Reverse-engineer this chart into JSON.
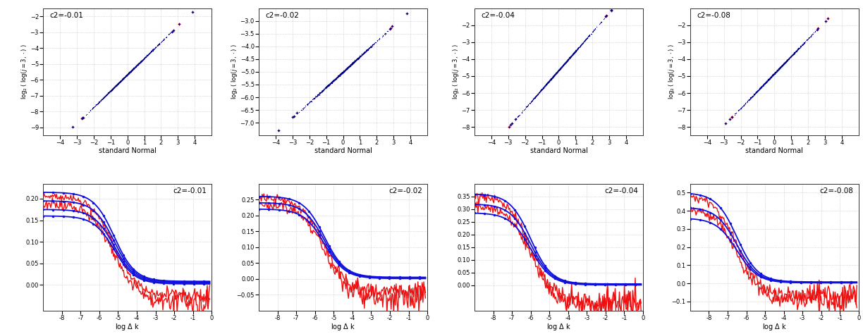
{
  "c2_values": [
    -0.01,
    -0.02,
    -0.04,
    -0.08
  ],
  "qq_params": [
    {
      "xlim": [
        -5,
        5
      ],
      "ylim": [
        -9.5,
        -1.5
      ],
      "yticks": [
        -9,
        -8,
        -7,
        -6,
        -5,
        -4,
        -3,
        -2
      ],
      "xticks": [
        -4,
        -3,
        -2,
        -1,
        0,
        1,
        2,
        3,
        4
      ]
    },
    {
      "xlim": [
        -5,
        5
      ],
      "ylim": [
        -7.5,
        -2.5
      ],
      "yticks": [
        -7,
        -6.5,
        -6,
        -5.5,
        -5,
        -4.5,
        -4,
        -3.5,
        -3
      ],
      "xticks": [
        -4,
        -3,
        -2,
        -1,
        0,
        1,
        2,
        3,
        4
      ]
    },
    {
      "xlim": [
        -5,
        5
      ],
      "ylim": [
        -8.5,
        -1.0
      ],
      "yticks": [
        -8,
        -7,
        -6,
        -5,
        -4,
        -3,
        -2
      ],
      "xticks": [
        -4,
        -3,
        -2,
        -1,
        0,
        1,
        2,
        3,
        4
      ]
    },
    {
      "xlim": [
        -5,
        5
      ],
      "ylim": [
        -8.5,
        -1.0
      ],
      "yticks": [
        -8,
        -7,
        -6,
        -5,
        -4,
        -3,
        -2
      ],
      "xticks": [
        -4,
        -3,
        -2,
        -1,
        0,
        1,
        2,
        3,
        4
      ]
    }
  ],
  "qq_yranges": [
    {
      "y_start": -9.0,
      "y_end": -1.7
    },
    {
      "y_start": -7.3,
      "y_end": -2.7
    },
    {
      "y_start": -8.0,
      "y_end": -1.1
    },
    {
      "y_start": -7.8,
      "y_end": -1.6
    }
  ],
  "cov_params": [
    {
      "ylim": [
        -0.06,
        0.235
      ],
      "yticks": [
        0.0,
        0.05,
        0.1,
        0.15,
        0.2
      ],
      "xlim": [
        -9,
        0
      ],
      "blue_starts": [
        0.215,
        0.195,
        0.175,
        0.16
      ],
      "blue_flats": [
        0.008,
        0.006,
        0.004,
        0.002
      ],
      "red_starts": [
        0.205,
        0.185,
        0.17
      ],
      "red_ends": [
        -0.025,
        -0.04,
        -0.045
      ],
      "knee_x": -5.2,
      "n_blue": 4,
      "n_red": 2
    },
    {
      "ylim": [
        -0.1,
        0.3
      ],
      "yticks": [
        -0.05,
        0.0,
        0.05,
        0.1,
        0.15,
        0.2,
        0.25
      ],
      "xlim": [
        -9,
        0
      ],
      "blue_starts": [
        0.26,
        0.24,
        0.22
      ],
      "blue_flats": [
        0.005,
        0.003,
        0.001
      ],
      "red_starts": [
        0.255,
        0.235,
        0.22
      ],
      "red_ends": [
        -0.04,
        -0.06,
        -0.07
      ],
      "knee_x": -5.5,
      "n_blue": 3,
      "n_red": 2
    },
    {
      "ylim": [
        -0.1,
        0.4
      ],
      "yticks": [
        0.0,
        0.05,
        0.1,
        0.15,
        0.2,
        0.25,
        0.3,
        0.35
      ],
      "xlim": [
        -9,
        0
      ],
      "blue_starts": [
        0.36,
        0.32,
        0.285
      ],
      "blue_flats": [
        0.005,
        0.003,
        0.001
      ],
      "red_starts": [
        0.355,
        0.315,
        0.28
      ],
      "red_ends": [
        -0.07,
        -0.075,
        -0.065
      ],
      "knee_x": -6.0,
      "n_blue": 3,
      "n_red": 2
    },
    {
      "ylim": [
        -0.15,
        0.55
      ],
      "yticks": [
        -0.1,
        0.0,
        0.1,
        0.2,
        0.3,
        0.4,
        0.5
      ],
      "xlim": [
        -9,
        0
      ],
      "blue_starts": [
        0.5,
        0.42,
        0.36
      ],
      "blue_flats": [
        0.008,
        0.005,
        0.003
      ],
      "red_starts": [
        0.49,
        0.41,
        0.35
      ],
      "red_ends": [
        -0.07,
        -0.09,
        -0.1
      ],
      "knee_x": -6.5,
      "n_blue": 3,
      "n_red": 2
    }
  ],
  "blue_color": "#1010DD",
  "red_color": "#EE1010",
  "dot_color_blue": "#00008B",
  "dot_color_red": "#CC2222",
  "grid_color": "#BBBBBB",
  "bg_color": "#FFFFFF",
  "label_fontsize": 7,
  "tick_fontsize": 6,
  "title_fontsize": 7.5
}
